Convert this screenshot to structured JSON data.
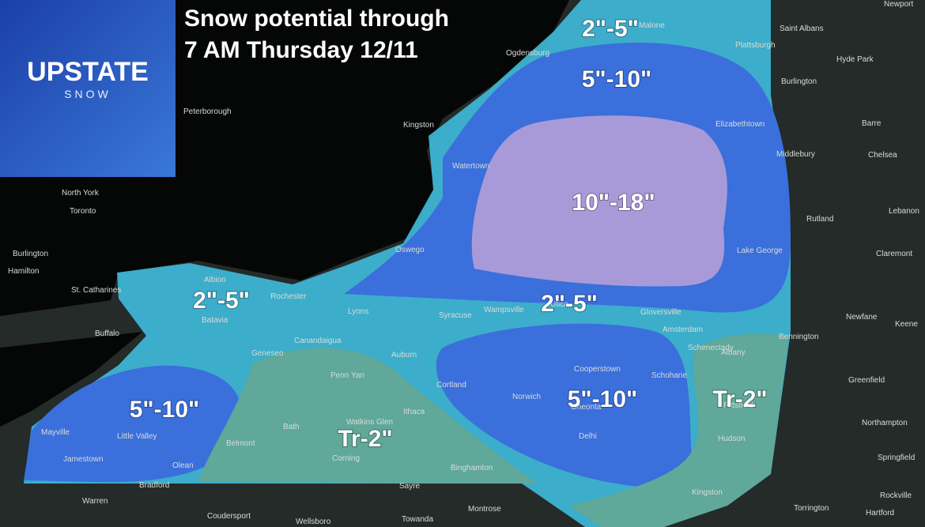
{
  "header": {
    "title_lines": [
      "Snow potential through",
      "7 AM Thursday 12/11"
    ]
  },
  "logo": {
    "name": "UPSTATE",
    "tagline": "SNOW"
  },
  "zones": [
    {
      "label": "2\"-5\""
    },
    {
      "label": "5\"-10\""
    },
    {
      "label": "10\"-18\""
    },
    {
      "label": "2\"-5\""
    },
    {
      "label": "2\"-5\""
    },
    {
      "label": "5\"-10\""
    },
    {
      "label": "5\"-10\""
    },
    {
      "label": "Tr-2\""
    },
    {
      "label": "Tr-2\""
    }
  ],
  "places": [
    "Newport",
    "Saint Albans",
    "Malone",
    "Plattsburgh",
    "Hyde Park",
    "Ogdensburg",
    "Burlington",
    "Peterborough",
    "Kingston",
    "Elizabethtown",
    "Barre",
    "Middlebury",
    "Chelsea",
    "Watertown",
    "North York",
    "Toronto",
    "Lebanon",
    "Rutland",
    "Burlington",
    "Hamilton",
    "Oswego",
    "Lake George",
    "Claremont",
    "Albion",
    "Rochester",
    "St. Catharines",
    "Batavia",
    "Lyons",
    "Syracuse",
    "Wampsville",
    "Utica",
    "Gloversville",
    "Amsterdam",
    "Buffalo",
    "Newfane",
    "Keene",
    "Bennington",
    "Schenectady",
    "Geneseo",
    "Canandaigua",
    "Auburn",
    "Albany",
    "Penn Yan",
    "Cooperstown",
    "Schoharie",
    "Cortland",
    "Greenfield",
    "Pittsfield",
    "Norwich",
    "Oneonta",
    "Watkins Glen",
    "Ithaca",
    "Bath",
    "Mayville",
    "Little Valley",
    "Belmont",
    "Delhi",
    "Hudson",
    "Northampton",
    "Jamestown",
    "Corning",
    "Olean",
    "Binghamton",
    "Springfield",
    "Bradford",
    "Sayre",
    "Kingston",
    "Warren",
    "Rockville",
    "Coudersport",
    "Towanda",
    "Montrose",
    "Wellsboro",
    "Torrington",
    "Hartford"
  ]
}
